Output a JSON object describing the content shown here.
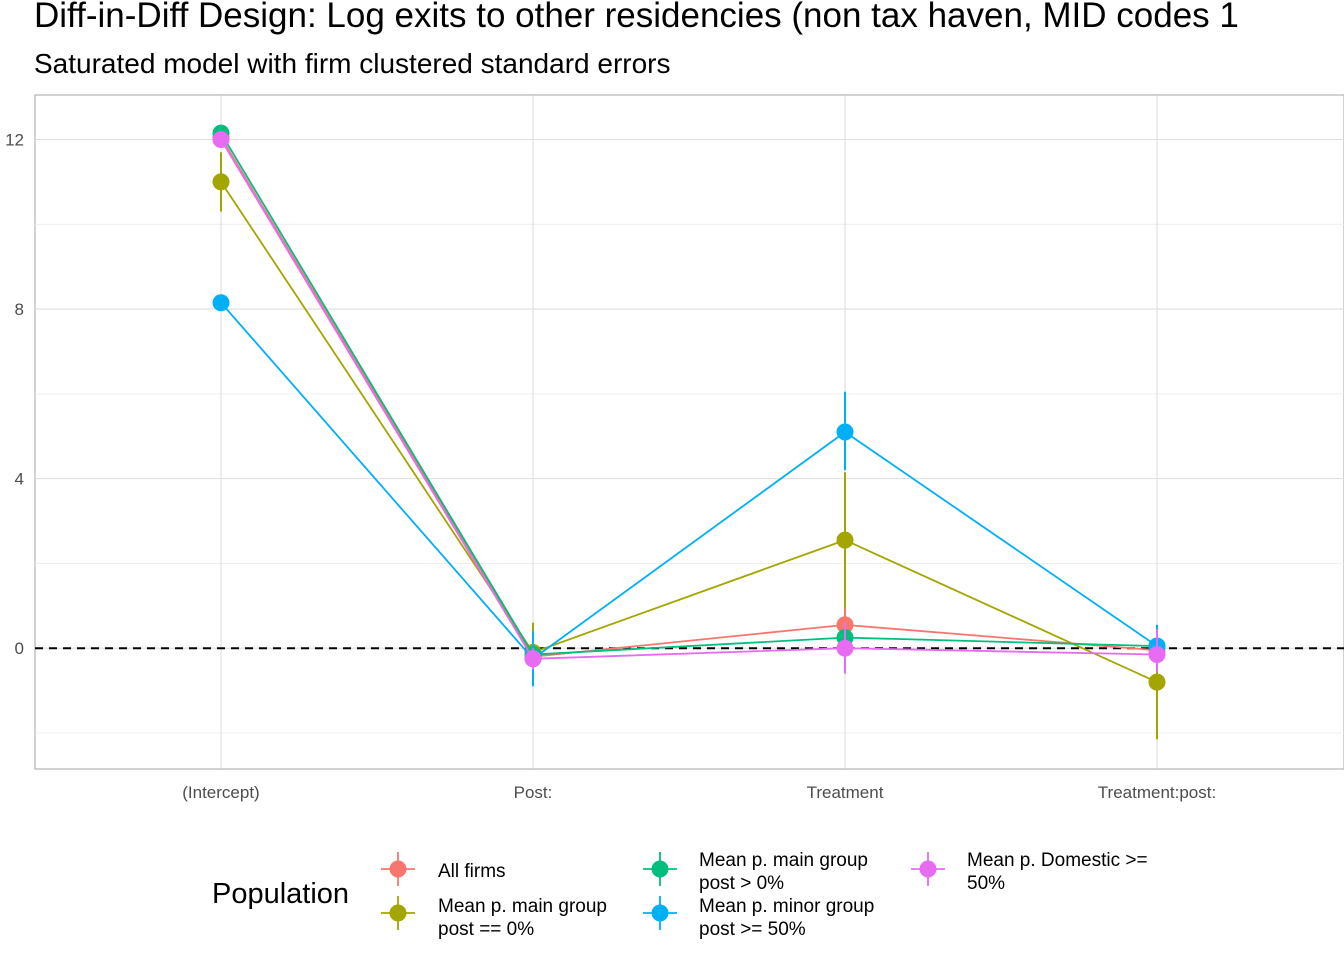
{
  "chart_data": {
    "type": "line",
    "title": "Diff-in-Diff Design: Log exits to other residencies (non tax haven, MID codes 1",
    "subtitle": "Saturated model with firm clustered standard errors",
    "xlabel": "",
    "ylabel": "",
    "categories": [
      "(Intercept)",
      "Post:",
      "Treatment",
      "Treatment:post:"
    ],
    "y_ticks": [
      0,
      4,
      8,
      12
    ],
    "ylim": [
      -2.85,
      13.05
    ],
    "grid": true,
    "reference_line": {
      "y": 0,
      "style": "dashed"
    },
    "legend": {
      "title": "Population",
      "position": "bottom"
    },
    "series": [
      {
        "name": "All firms",
        "color": "#F8766D",
        "values": [
          12.05,
          -0.2,
          0.55,
          -0.05
        ],
        "lower": [
          11.9,
          -0.45,
          0.15,
          -0.3
        ],
        "upper": [
          12.2,
          0.05,
          0.95,
          0.2
        ]
      },
      {
        "name": "Mean p. main group\npost == 0%",
        "color": "#A3A500",
        "values": [
          11.0,
          -0.1,
          2.55,
          -0.8
        ],
        "lower": [
          10.3,
          -0.7,
          0.95,
          -2.15
        ],
        "upper": [
          11.7,
          0.6,
          4.15,
          0.45
        ]
      },
      {
        "name": "Mean p. main group\npost > 0%",
        "color": "#00BF7D",
        "values": [
          12.15,
          -0.15,
          0.25,
          0.05
        ],
        "lower": [
          12.0,
          -0.35,
          -0.05,
          -0.2
        ],
        "upper": [
          12.3,
          0.05,
          0.55,
          0.3
        ]
      },
      {
        "name": "Mean p. minor group\npost >= 50%",
        "color": "#00B0F6",
        "values": [
          8.15,
          -0.25,
          5.1,
          0.05
        ],
        "lower": [
          8.0,
          -0.9,
          4.2,
          -0.3
        ],
        "upper": [
          8.3,
          0.4,
          6.05,
          0.55
        ]
      },
      {
        "name": "Mean p. Domestic >=\n50%",
        "color": "#E76BF3",
        "values": [
          12.0,
          -0.25,
          0.0,
          -0.15
        ],
        "lower": [
          11.85,
          -0.5,
          -0.6,
          -0.55
        ],
        "upper": [
          12.15,
          0.0,
          0.6,
          0.45
        ]
      }
    ]
  }
}
